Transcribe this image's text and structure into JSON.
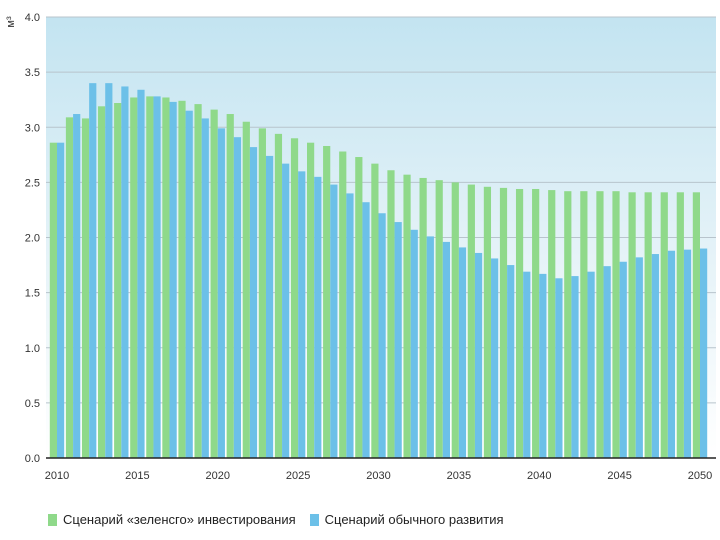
{
  "chart_data": {
    "type": "bar",
    "title": "",
    "ylabel": "",
    "unit_label": "м³",
    "xlabel": "",
    "ylim": [
      0,
      4.0
    ],
    "y_ticks": [
      "0.0",
      "0.5",
      "1.0",
      "1.5",
      "2.0",
      "2.5",
      "3.0",
      "3.5",
      "4.0"
    ],
    "x_ticks": [
      "2010",
      "2015",
      "2020",
      "2025",
      "2030",
      "2035",
      "2040",
      "2045",
      "2050"
    ],
    "grid": true,
    "legend_position": "bottom",
    "categories": [
      2010,
      2011,
      2012,
      2013,
      2014,
      2015,
      2016,
      2017,
      2018,
      2019,
      2020,
      2021,
      2022,
      2023,
      2024,
      2025,
      2026,
      2027,
      2028,
      2029,
      2030,
      2031,
      2032,
      2033,
      2034,
      2035,
      2036,
      2037,
      2038,
      2039,
      2040,
      2041,
      2042,
      2043,
      2044,
      2045,
      2046,
      2047,
      2048,
      2049,
      2050
    ],
    "series": [
      {
        "name": "Сценарий «зеленсго» инвестирования",
        "color": "#8fd98a",
        "values": [
          2.86,
          3.09,
          3.08,
          3.19,
          3.22,
          3.27,
          3.28,
          3.27,
          3.24,
          3.21,
          3.16,
          3.12,
          3.05,
          2.99,
          2.94,
          2.9,
          2.86,
          2.83,
          2.78,
          2.73,
          2.67,
          2.61,
          2.57,
          2.54,
          2.52,
          2.5,
          2.48,
          2.46,
          2.45,
          2.44,
          2.44,
          2.43,
          2.42,
          2.42,
          2.42,
          2.42,
          2.41,
          2.41,
          2.41,
          2.41,
          2.41
        ]
      },
      {
        "name": "Сценарий обычного развития",
        "color": "#6cc0e8",
        "values": [
          2.86,
          3.12,
          3.4,
          3.4,
          3.37,
          3.34,
          3.28,
          3.23,
          3.15,
          3.08,
          2.99,
          2.91,
          2.82,
          2.74,
          2.67,
          2.6,
          2.55,
          2.48,
          2.4,
          2.32,
          2.22,
          2.14,
          2.07,
          2.01,
          1.96,
          1.91,
          1.86,
          1.81,
          1.75,
          1.69,
          1.67,
          1.63,
          1.65,
          1.69,
          1.74,
          1.78,
          1.82,
          1.85,
          1.88,
          1.89,
          1.9
        ]
      }
    ]
  }
}
